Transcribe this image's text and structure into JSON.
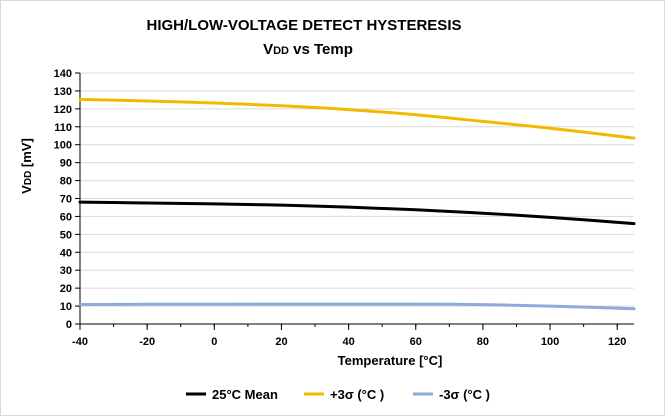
{
  "chart_data": {
    "type": "line",
    "title": "HIGH/LOW-VOLTAGE DETECT  HYSTERESIS",
    "subtitle": "VDD vs Temp",
    "subtitle_parts": {
      "main": "V",
      "sub": "DD",
      "rest": " vs Temp"
    },
    "xlabel": "Temperature [°C]",
    "ylabel": "VDD [mV]",
    "ylabel_parts": {
      "main": "V",
      "sub": "DD",
      "rest": " [mV]"
    },
    "xlim": [
      -40,
      125
    ],
    "ylim": [
      0,
      140
    ],
    "x_ticks": [
      -40,
      -20,
      0,
      20,
      40,
      60,
      80,
      100,
      120
    ],
    "y_ticks": [
      0,
      10,
      20,
      30,
      40,
      50,
      60,
      70,
      80,
      90,
      100,
      110,
      120,
      130,
      140
    ],
    "grid": "horizontal",
    "legend_position": "bottom",
    "series": [
      {
        "name": "25°C Mean",
        "color": "#000000",
        "x": [
          -40,
          -20,
          0,
          20,
          40,
          60,
          80,
          100,
          125
        ],
        "values": [
          68,
          67.5,
          67,
          66.3,
          65.2,
          63.7,
          61.8,
          59.5,
          56
        ]
      },
      {
        "name": "+3σ (°C )",
        "color": "#f5b800",
        "x": [
          -40,
          -20,
          0,
          20,
          40,
          60,
          80,
          100,
          125
        ],
        "values": [
          125.3,
          124.4,
          123.3,
          121.7,
          119.6,
          116.7,
          113,
          109.2,
          103.7
        ]
      },
      {
        "name": "-3σ (°C )",
        "color": "#8eaadb",
        "x": [
          -40,
          -20,
          0,
          20,
          40,
          60,
          80,
          100,
          125
        ],
        "values": [
          10.9,
          11,
          11,
          11.1,
          11.1,
          11.1,
          10.8,
          10,
          8.5
        ]
      }
    ]
  }
}
